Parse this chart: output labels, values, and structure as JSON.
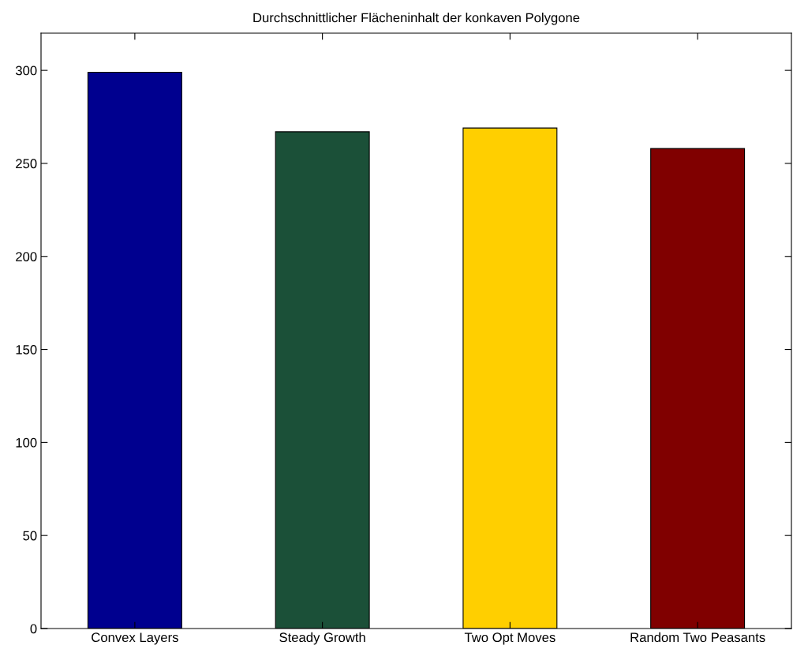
{
  "chart_data": {
    "type": "bar",
    "title": "Durchschnittlicher Flächeninhalt der konkaven Polygone",
    "categories": [
      "Convex Layers",
      "Steady Growth",
      "Two Opt Moves",
      "Random Two Peasants"
    ],
    "values": [
      299,
      267,
      269,
      258
    ],
    "colors": [
      "#00008f",
      "#1b5038",
      "#ffcf00",
      "#800000"
    ],
    "ylim": [
      0,
      320
    ],
    "yticks": [
      0,
      50,
      100,
      150,
      200,
      250,
      300
    ],
    "grid": false,
    "legend": false
  }
}
